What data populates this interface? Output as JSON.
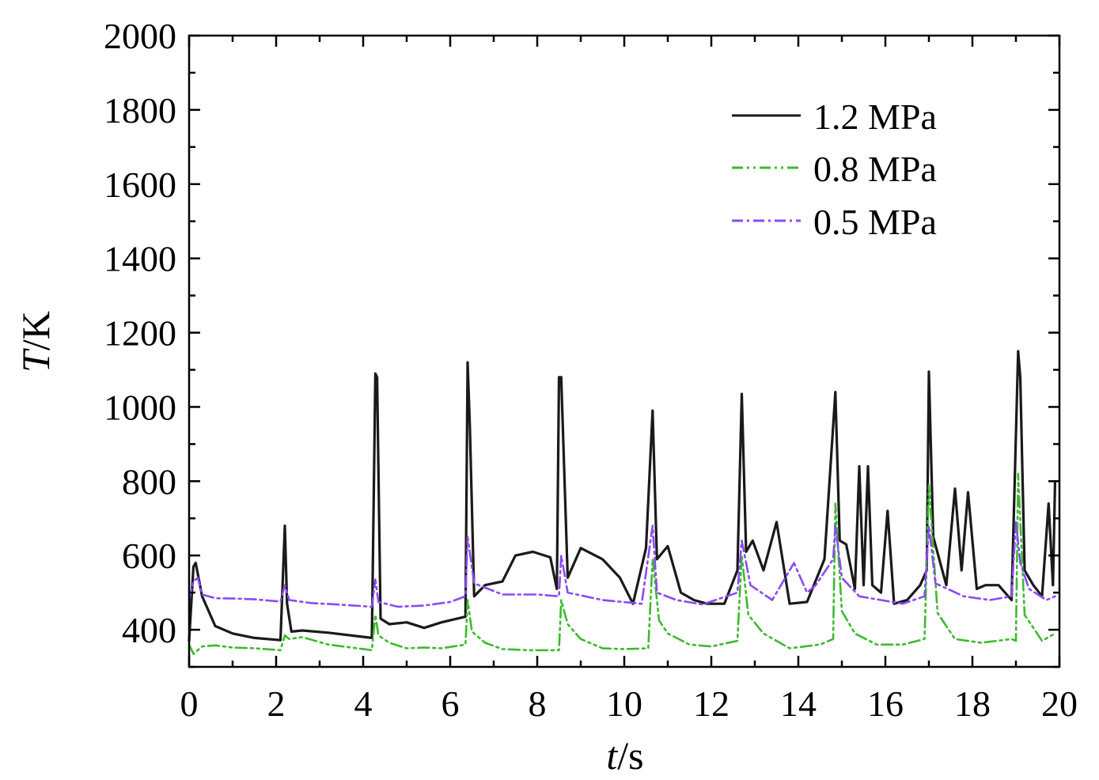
{
  "chart_data": {
    "type": "line",
    "title": "",
    "xlabel": {
      "var": "t",
      "unit": "/s"
    },
    "ylabel": {
      "var": "T",
      "unit": "/K"
    },
    "xlim": [
      0,
      20
    ],
    "ylim": [
      300,
      2000
    ],
    "xticks": [
      0,
      2,
      4,
      6,
      8,
      10,
      12,
      14,
      16,
      18,
      20
    ],
    "yticks": [
      400,
      600,
      800,
      1000,
      1200,
      1400,
      1600,
      1800,
      2000
    ],
    "grid": false,
    "legend_position": "top-right",
    "series": [
      {
        "name": "1.2 MPa",
        "color": "#1a1a1a",
        "dash": "solid",
        "x": [
          0.0,
          0.1,
          0.15,
          0.3,
          0.6,
          1.0,
          1.5,
          2.1,
          2.2,
          2.25,
          2.35,
          2.6,
          3.2,
          4.2,
          4.28,
          4.32,
          4.4,
          4.6,
          5.0,
          5.4,
          5.8,
          6.35,
          6.4,
          6.45,
          6.55,
          6.8,
          7.2,
          7.5,
          7.9,
          8.3,
          8.45,
          8.5,
          8.55,
          8.7,
          9.0,
          9.5,
          9.9,
          10.2,
          10.5,
          10.65,
          10.75,
          11.0,
          11.3,
          11.6,
          11.9,
          12.3,
          12.6,
          12.7,
          12.8,
          12.95,
          13.2,
          13.5,
          13.8,
          14.2,
          14.6,
          14.85,
          14.95,
          15.1,
          15.3,
          15.4,
          15.5,
          15.6,
          15.7,
          15.9,
          16.05,
          16.2,
          16.5,
          16.8,
          16.95,
          17.0,
          17.1,
          17.4,
          17.6,
          17.75,
          17.9,
          18.1,
          18.3,
          18.6,
          18.9,
          19.05,
          19.1,
          19.2,
          19.4,
          19.6,
          19.75,
          19.85,
          19.9
        ],
        "y": [
          370,
          570,
          580,
          490,
          410,
          390,
          378,
          372,
          680,
          470,
          395,
          398,
          392,
          378,
          1090,
          1080,
          430,
          415,
          420,
          405,
          420,
          435,
          1120,
          950,
          490,
          520,
          530,
          600,
          610,
          595,
          510,
          1080,
          1080,
          540,
          620,
          590,
          540,
          470,
          620,
          990,
          590,
          625,
          500,
          480,
          470,
          470,
          560,
          1035,
          610,
          640,
          560,
          690,
          470,
          475,
          590,
          1040,
          640,
          630,
          510,
          840,
          520,
          840,
          520,
          500,
          720,
          470,
          480,
          520,
          560,
          1095,
          650,
          520,
          780,
          560,
          770,
          510,
          520,
          520,
          480,
          1150,
          1080,
          560,
          520,
          490,
          740,
          520,
          800
        ]
      },
      {
        "name": "0.8 MPa",
        "color": "#3dba2e",
        "dash": "dash-dot-dot",
        "x": [
          0.0,
          0.1,
          0.3,
          0.6,
          1.0,
          1.5,
          2.1,
          2.2,
          2.3,
          2.6,
          3.2,
          4.2,
          4.28,
          4.35,
          4.6,
          5.0,
          5.4,
          5.8,
          6.35,
          6.4,
          6.5,
          6.8,
          7.2,
          7.8,
          8.5,
          8.55,
          8.7,
          9.0,
          9.5,
          10.0,
          10.55,
          10.65,
          10.8,
          11.0,
          11.5,
          12.0,
          12.6,
          12.7,
          12.85,
          13.2,
          13.8,
          14.5,
          14.8,
          14.85,
          15.0,
          15.3,
          15.8,
          16.4,
          16.9,
          17.0,
          17.2,
          17.6,
          18.2,
          18.9,
          19.0,
          19.05,
          19.2,
          19.6,
          19.9
        ],
        "y": [
          360,
          335,
          355,
          358,
          352,
          350,
          345,
          385,
          375,
          380,
          360,
          345,
          440,
          385,
          365,
          350,
          352,
          350,
          360,
          480,
          395,
          365,
          348,
          345,
          345,
          480,
          415,
          375,
          350,
          348,
          350,
          590,
          425,
          390,
          360,
          355,
          370,
          600,
          440,
          390,
          350,
          360,
          375,
          740,
          450,
          390,
          360,
          360,
          375,
          790,
          445,
          375,
          365,
          375,
          370,
          820,
          440,
          370,
          390
        ]
      },
      {
        "name": "0.5 MPa",
        "color": "#8a4bf2",
        "dash": "dash-dot",
        "x": [
          0.0,
          0.1,
          0.2,
          0.3,
          0.6,
          1.0,
          1.5,
          2.1,
          2.2,
          2.3,
          2.8,
          3.4,
          4.2,
          4.28,
          4.35,
          4.8,
          5.4,
          6.0,
          6.35,
          6.4,
          6.55,
          7.2,
          8.0,
          8.5,
          8.55,
          8.7,
          9.5,
          10.4,
          10.65,
          10.75,
          11.2,
          11.8,
          12.6,
          12.7,
          12.9,
          13.4,
          13.9,
          14.2,
          14.4,
          14.8,
          14.85,
          15.0,
          15.4,
          15.9,
          16.4,
          16.9,
          17.0,
          17.15,
          17.8,
          18.4,
          18.9,
          19.0,
          19.1,
          19.3,
          19.7,
          19.9
        ],
        "y": [
          480,
          530,
          540,
          495,
          485,
          484,
          482,
          476,
          520,
          480,
          472,
          468,
          462,
          535,
          475,
          462,
          465,
          475,
          490,
          650,
          525,
          495,
          495,
          490,
          600,
          500,
          480,
          470,
          680,
          500,
          480,
          468,
          500,
          640,
          520,
          480,
          580,
          500,
          520,
          590,
          680,
          540,
          490,
          480,
          470,
          490,
          680,
          525,
          490,
          480,
          490,
          690,
          580,
          510,
          480,
          490
        ]
      }
    ]
  }
}
